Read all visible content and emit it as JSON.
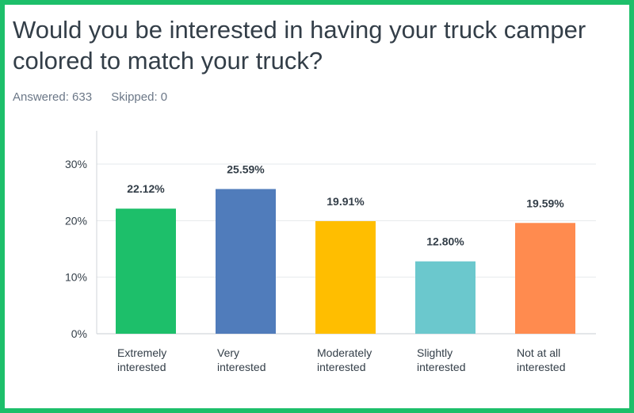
{
  "title": "Would you be interested in having your truck camper colored to match your truck?",
  "answered_label": "Answered: 633",
  "skipped_label": "Skipped: 0",
  "colors": {
    "frame": "#1dbf6a",
    "bars": [
      "#1dbf6a",
      "#507cbb",
      "#ffbe00",
      "#6bc8cd",
      "#ff8b4f"
    ]
  },
  "chart_data": {
    "type": "bar",
    "categories": [
      [
        "Extremely",
        "interested"
      ],
      [
        "Very",
        "interested"
      ],
      [
        "Moderately",
        "interested"
      ],
      [
        "Slightly",
        "interested"
      ],
      [
        "Not at all",
        "interested"
      ]
    ],
    "values": [
      22.12,
      25.59,
      19.91,
      12.8,
      19.59
    ],
    "value_labels": [
      "22.12%",
      "25.59%",
      "19.91%",
      "12.80%",
      "19.59%"
    ],
    "yticks": [
      0,
      10,
      20,
      30
    ],
    "ytick_labels": [
      "0%",
      "10%",
      "20%",
      "30%"
    ],
    "ylim": [
      0,
      30
    ],
    "grid": true
  }
}
